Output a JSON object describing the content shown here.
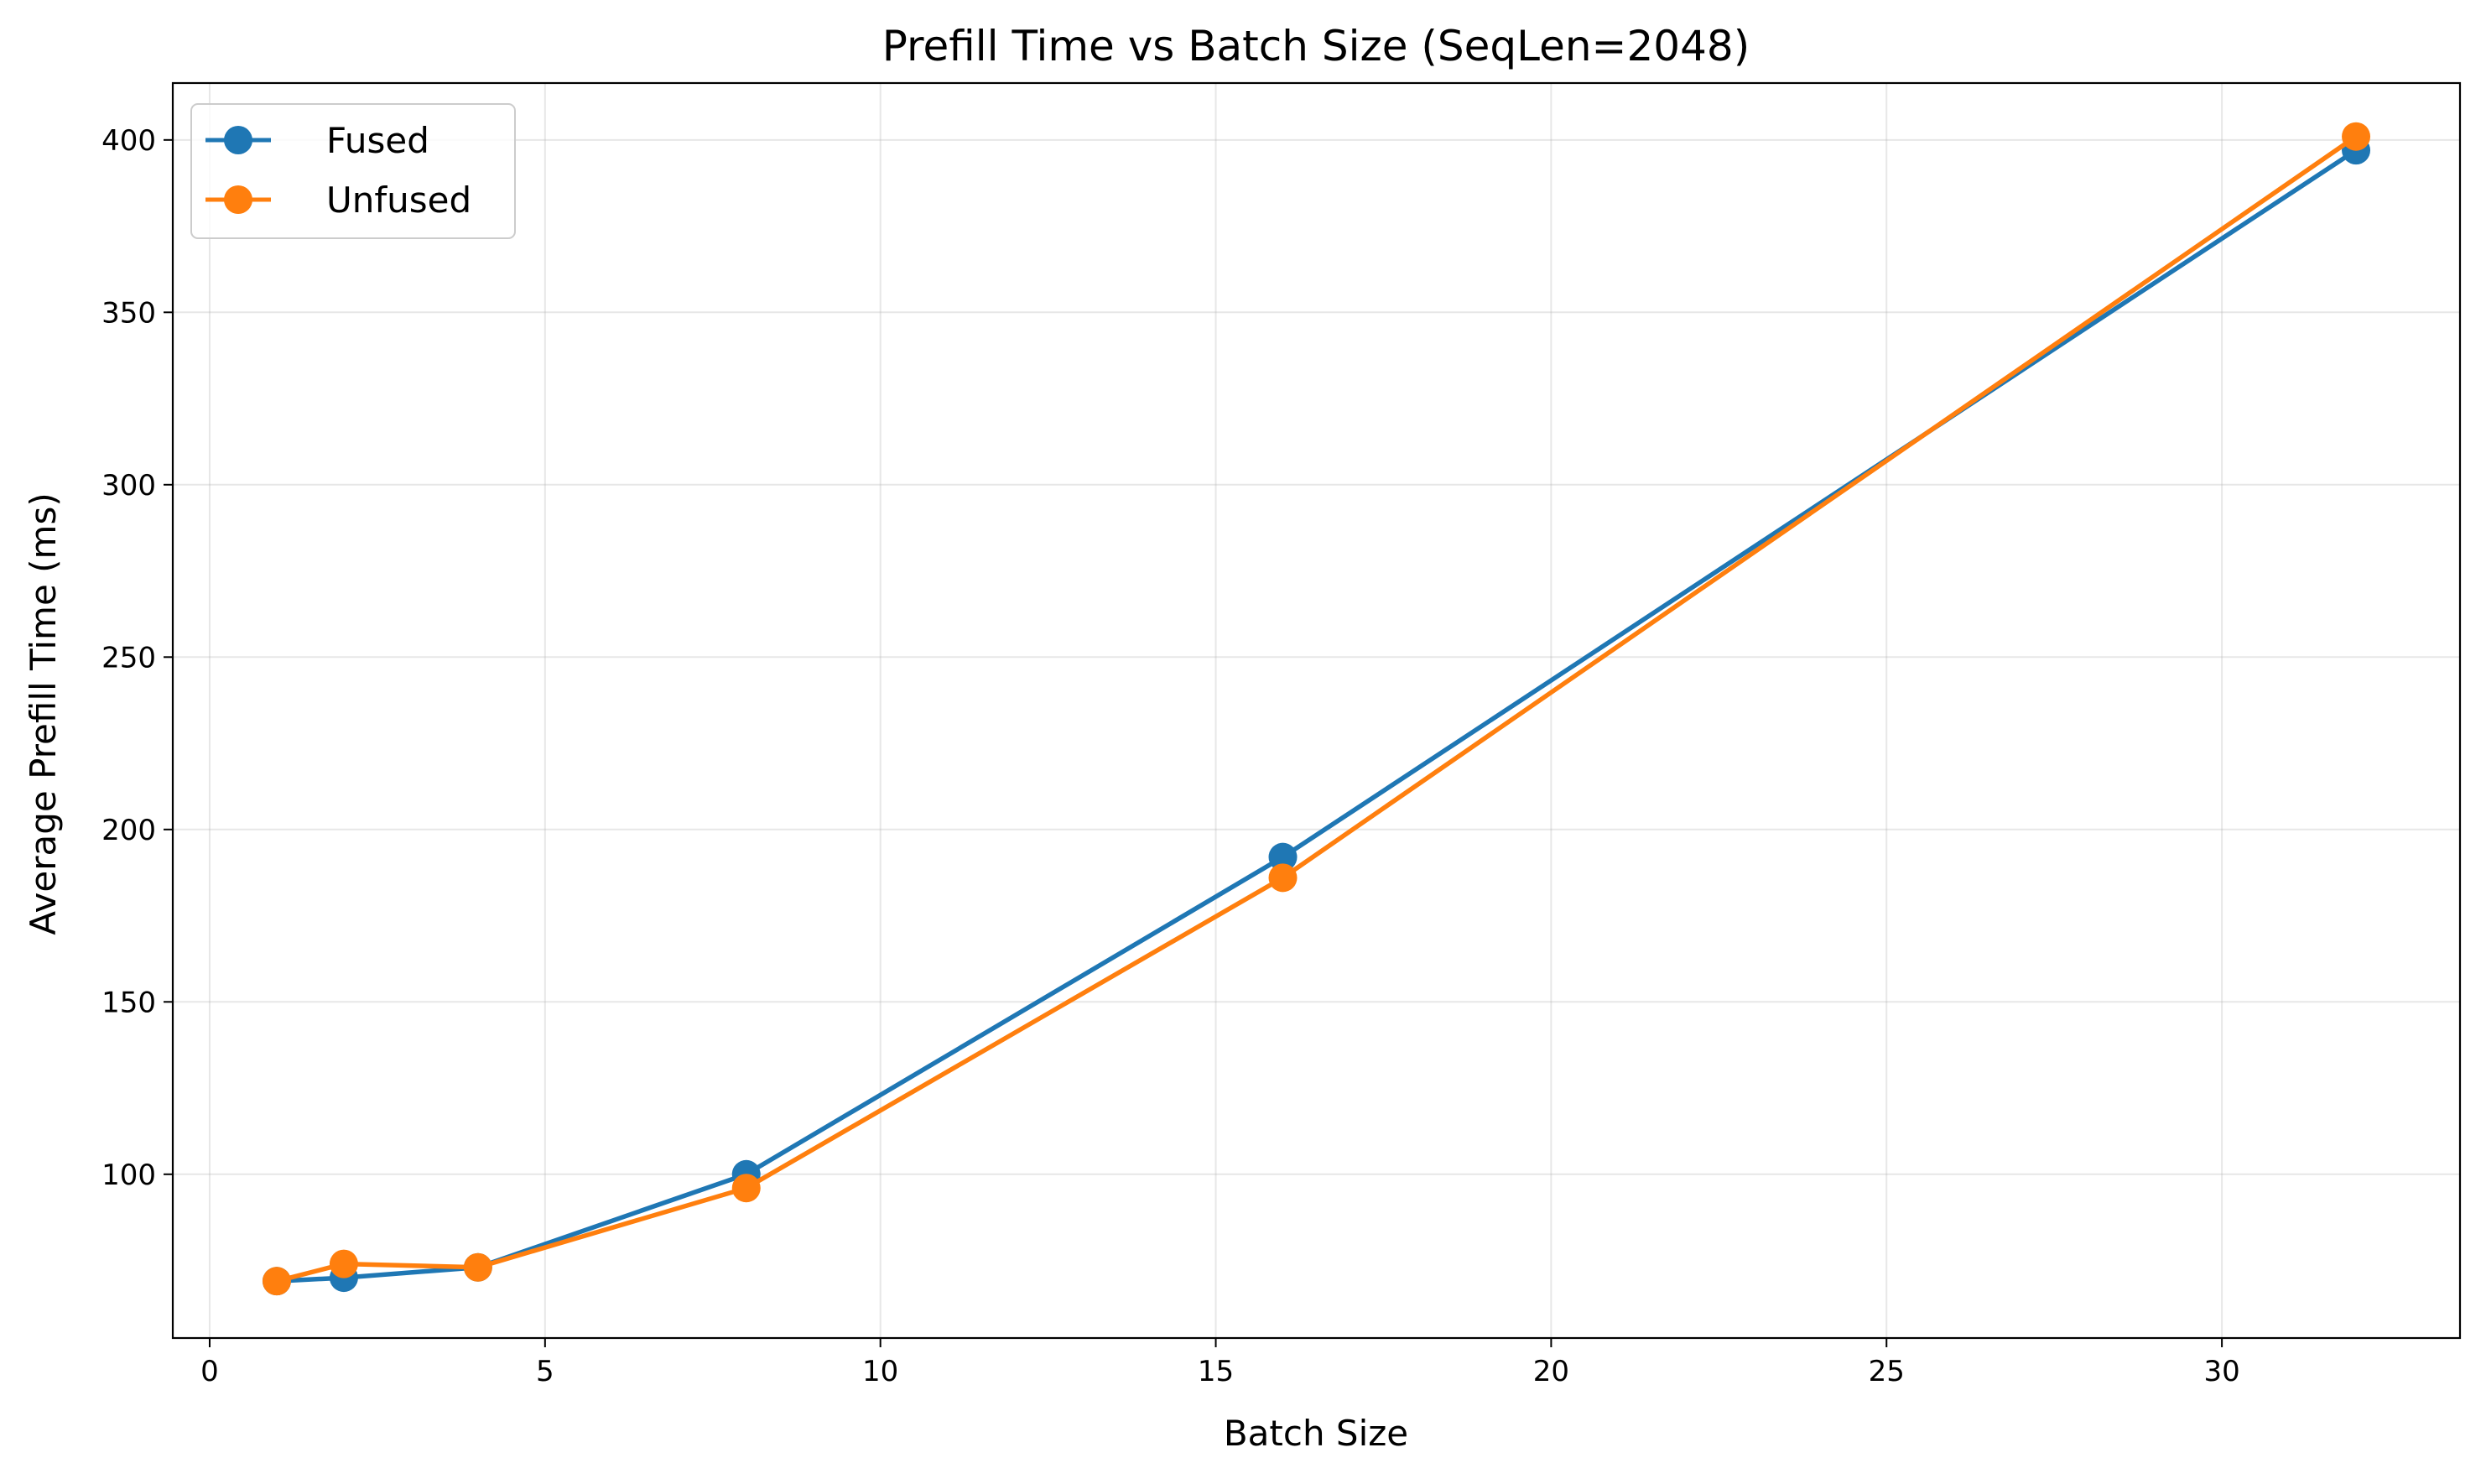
{
  "chart_data": {
    "type": "line",
    "title": "Prefill Time vs Batch Size (SeqLen=2048)",
    "xlabel": "Batch Size",
    "ylabel": "Average Prefill Time (ms)",
    "xlim": [
      -0.55,
      33.55
    ],
    "ylim": [
      52.5,
      416.5
    ],
    "xticks": [
      0,
      5,
      10,
      15,
      20,
      25,
      30
    ],
    "yticks": [
      100,
      150,
      200,
      250,
      300,
      350,
      400
    ],
    "grid": true,
    "legend": "top-left",
    "series": [
      {
        "name": "Fused",
        "color": "#1f77b4",
        "x": [
          1,
          2,
          4,
          8,
          16,
          32
        ],
        "y": [
          69,
          70,
          73,
          100,
          192,
          397
        ]
      },
      {
        "name": "Unfused",
        "color": "#ff7f0e",
        "x": [
          1,
          2,
          4,
          8,
          16,
          32
        ],
        "y": [
          69,
          74,
          73,
          96,
          186,
          401
        ]
      }
    ]
  }
}
